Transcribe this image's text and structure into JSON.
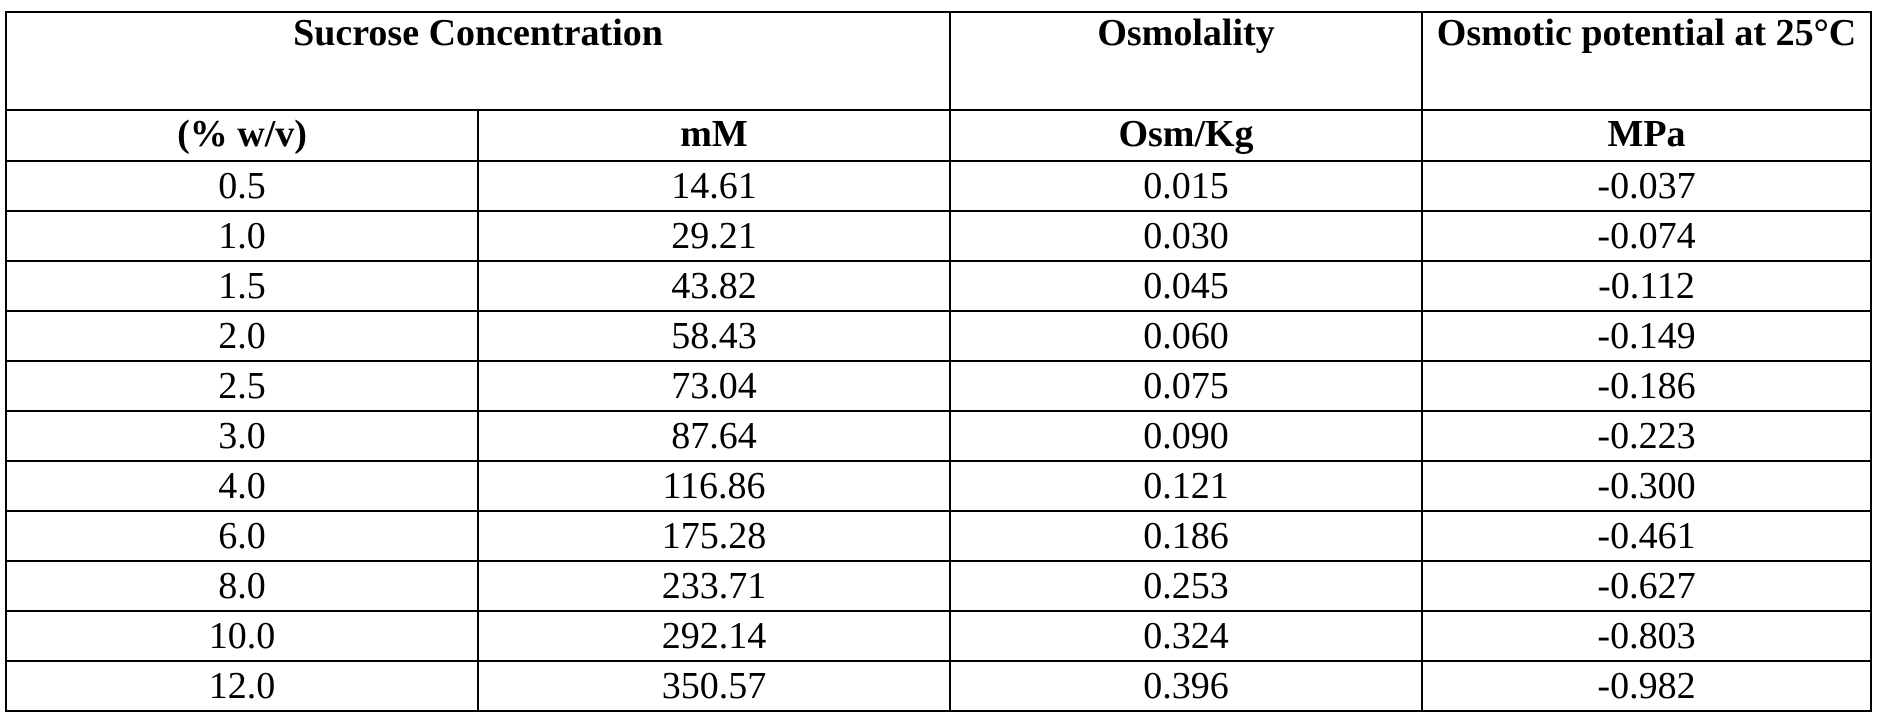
{
  "headers": {
    "sucrose_concentration": "Sucrose Concentration",
    "osmolality": "Osmolality",
    "osmotic_potential": "Osmotic potential at 25°C"
  },
  "units": [
    "(% w/v)",
    "mM",
    "Osm/Kg",
    "MPa"
  ],
  "rows": [
    [
      "0.5",
      "14.61",
      "0.015",
      "-0.037"
    ],
    [
      "1.0",
      "29.21",
      "0.030",
      "-0.074"
    ],
    [
      "1.5",
      "43.82",
      "0.045",
      "-0.112"
    ],
    [
      "2.0",
      "58.43",
      "0.060",
      "-0.149"
    ],
    [
      "2.5",
      "73.04",
      "0.075",
      "-0.186"
    ],
    [
      "3.0",
      "87.64",
      "0.090",
      "-0.223"
    ],
    [
      "4.0",
      "116.86",
      "0.121",
      "-0.300"
    ],
    [
      "6.0",
      "175.28",
      "0.186",
      "-0.461"
    ],
    [
      "8.0",
      "233.71",
      "0.253",
      "-0.627"
    ],
    [
      "10.0",
      "292.14",
      "0.324",
      "-0.803"
    ],
    [
      "12.0",
      "350.57",
      "0.396",
      "-0.982"
    ]
  ]
}
